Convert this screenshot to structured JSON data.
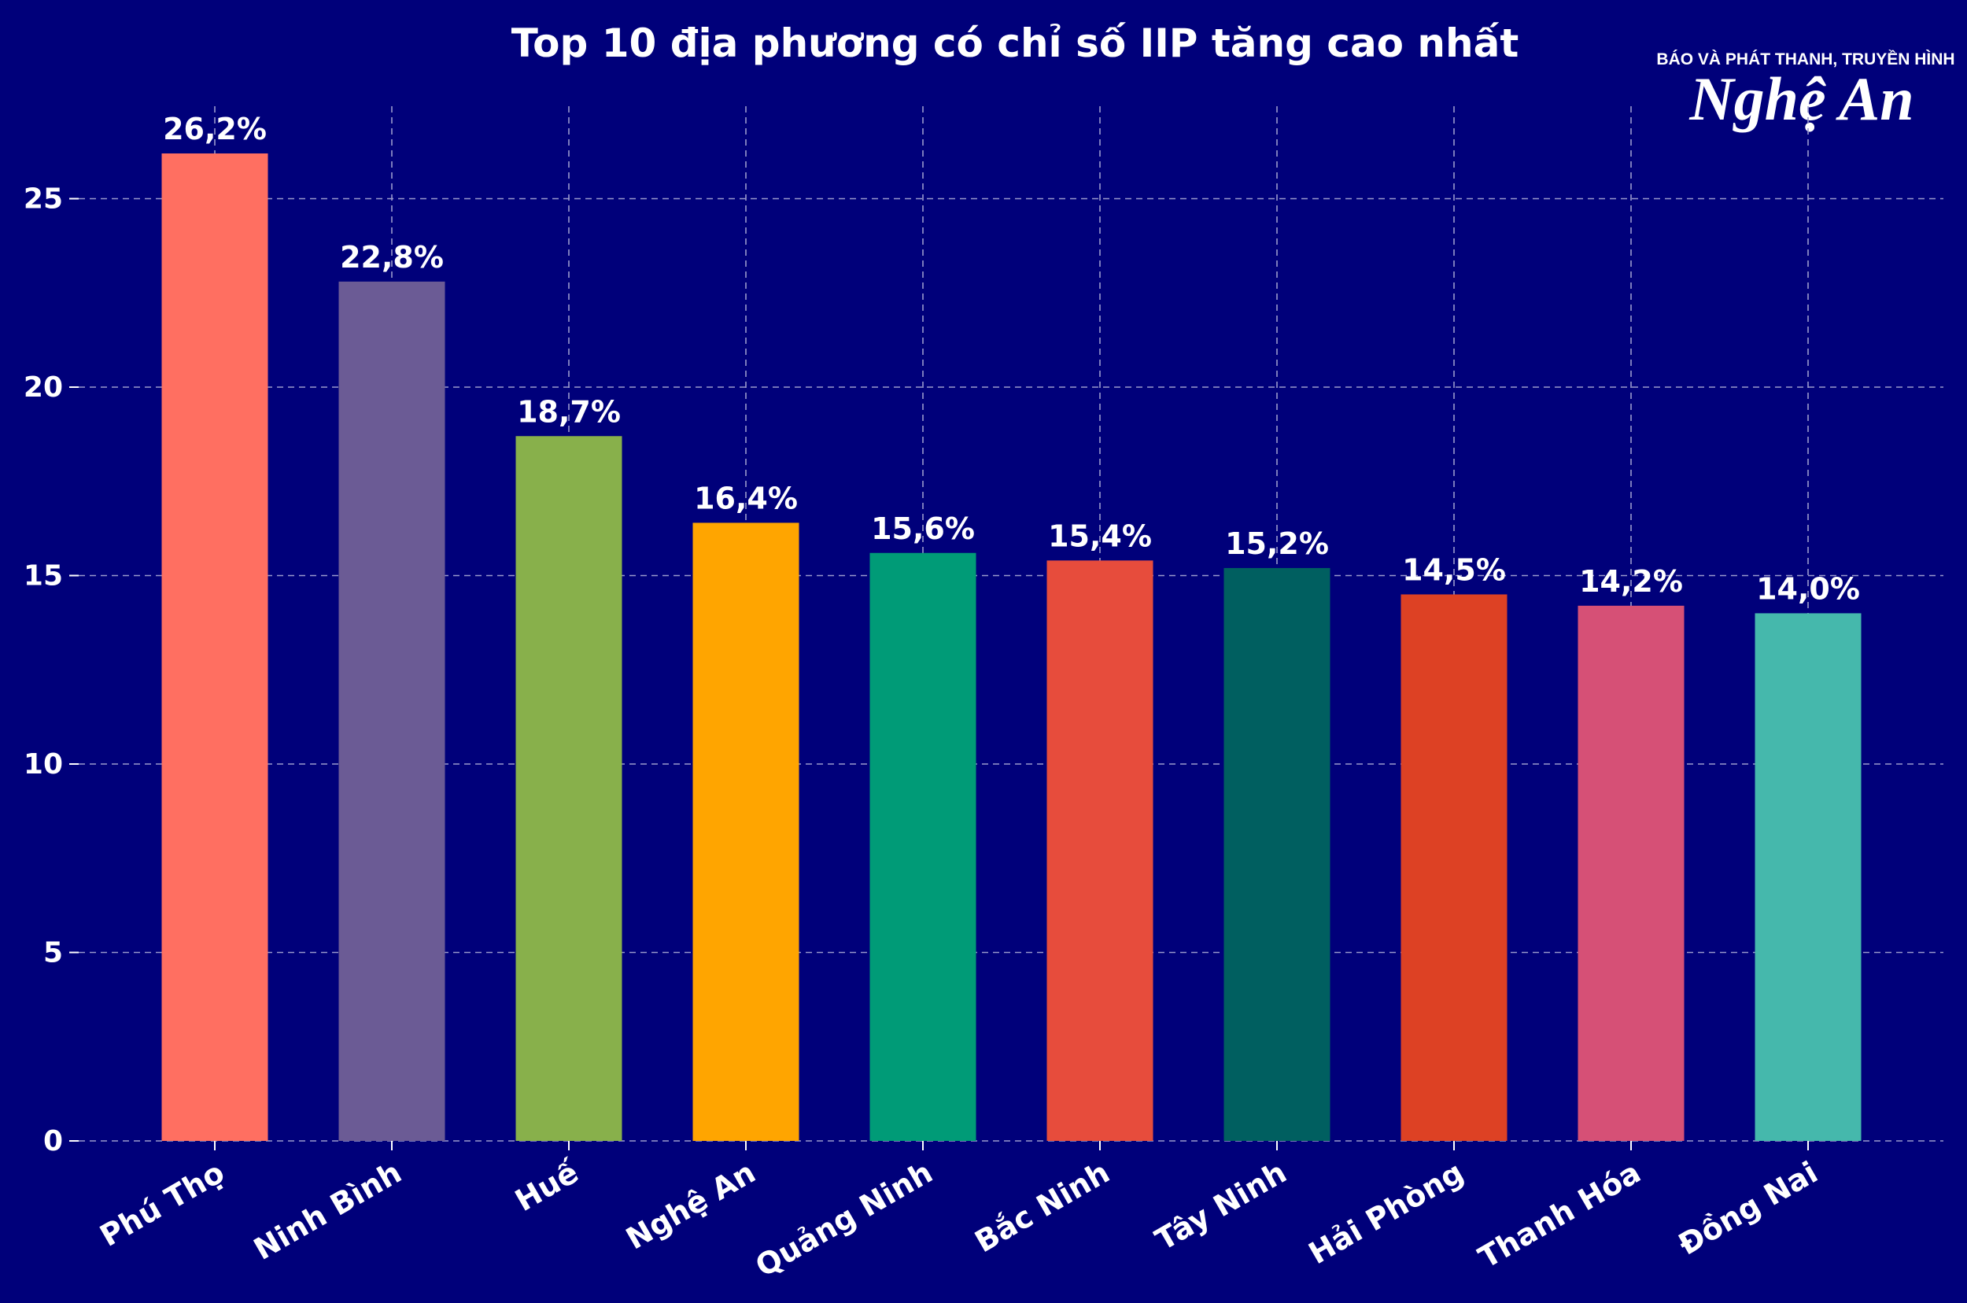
{
  "chart_data": {
    "type": "bar",
    "title": "Top 10 địa phương có chỉ số IIP tăng cao nhất",
    "categories": [
      "Phú Thọ",
      "Ninh Bình",
      "Huế",
      "Nghệ An",
      "Quảng Ninh",
      "Bắc Ninh",
      "Tây Ninh",
      "Hải Phòng",
      "Thanh Hóa",
      "Đồng Nai"
    ],
    "values": [
      26.2,
      22.8,
      18.7,
      16.4,
      15.6,
      15.4,
      15.2,
      14.5,
      14.2,
      14.0
    ],
    "data_labels": [
      "26,2%",
      "22,8%",
      "18,7%",
      "16,4%",
      "15,6%",
      "15,4%",
      "15,2%",
      "14,5%",
      "14,2%",
      "14,0%"
    ],
    "bar_colors": [
      "#ff6f61",
      "#6b5b95",
      "#88b04b",
      "#ffa500",
      "#009b77",
      "#e74c3c",
      "#005f60",
      "#dd4124",
      "#d65076",
      "#45b8ac"
    ],
    "y_ticks": [
      "0",
      "5",
      "10",
      "15",
      "20",
      "25"
    ],
    "ylim": [
      0,
      27.5
    ],
    "xlabel": "",
    "ylabel": "",
    "grid": true,
    "legend": "none"
  },
  "logo": {
    "tagline": "BÁO VÀ PHÁT THANH, TRUYỀN HÌNH",
    "name": "Nghệ An"
  },
  "colors": {
    "background": "#00007a",
    "text": "#ffffff",
    "grid": "#9a9acc"
  }
}
